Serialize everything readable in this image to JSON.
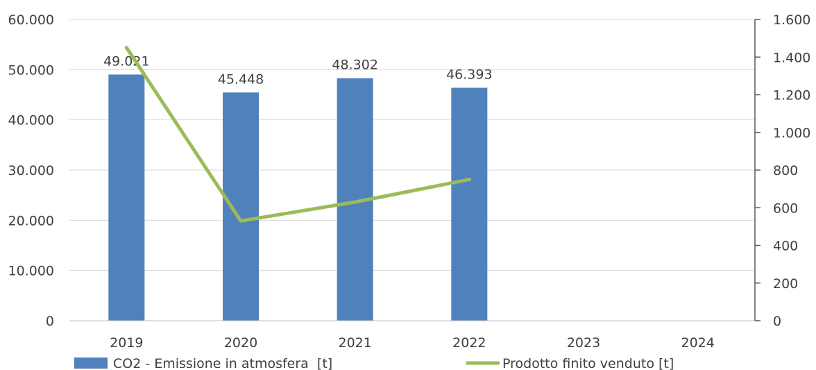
{
  "chart_data": {
    "type": "bar",
    "categories": [
      "2019",
      "2020",
      "2021",
      "2022",
      "2023",
      "2024"
    ],
    "series": [
      {
        "name": "CO2 - Emissione in atmosfera  [t]",
        "type": "bar",
        "axis": "left",
        "color": "#4F81BD",
        "values": [
          49021,
          45448,
          48302,
          46393,
          null,
          null
        ],
        "labels": [
          "49.021",
          "45.448",
          "48.302",
          "46.393",
          "",
          ""
        ]
      },
      {
        "name": "Prodotto finito venduto [t]",
        "type": "line",
        "axis": "right",
        "color": "#9BBB59",
        "values": [
          1450,
          530,
          630,
          750,
          null,
          null
        ]
      }
    ],
    "y_left": {
      "range": [
        0,
        60000
      ],
      "ticks": [
        0,
        10000,
        20000,
        30000,
        40000,
        50000,
        60000
      ],
      "tick_labels": [
        "0",
        "10.000",
        "20.000",
        "30.000",
        "40.000",
        "50.000",
        "60.000"
      ]
    },
    "y_right": {
      "range": [
        0,
        1600
      ],
      "ticks": [
        0,
        200,
        400,
        600,
        800,
        1000,
        1200,
        1400,
        1600
      ],
      "tick_labels": [
        "0",
        "200",
        "400",
        "600",
        "800",
        "1.000",
        "1.200",
        "1.400",
        "1.600"
      ]
    },
    "grid": true,
    "legend": "bottom"
  }
}
